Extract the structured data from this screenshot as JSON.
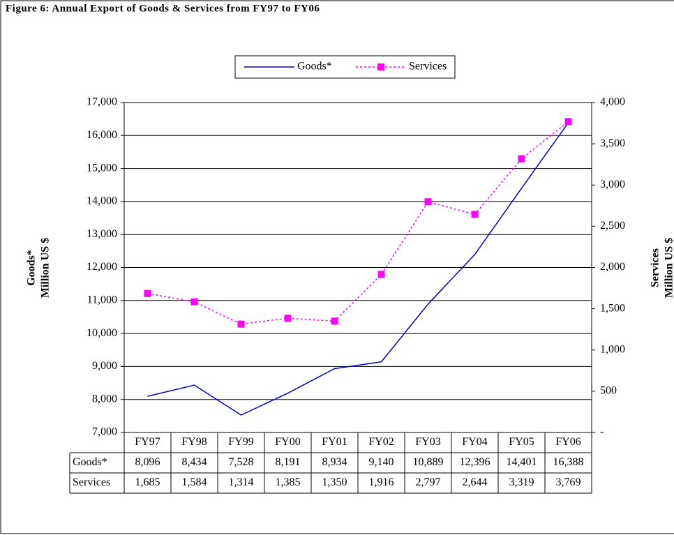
{
  "chart_data": {
    "type": "line",
    "title": "Figure 6: Annual  Export of Goods & Services from FY97 to FY06",
    "categories": [
      "FY97",
      "FY98",
      "FY99",
      "FY00",
      "FY01",
      "FY02",
      "FY03",
      "FY04",
      "FY05",
      "FY06"
    ],
    "y_label": [
      "Goods*",
      "Million US $"
    ],
    "y2_label": [
      "Services",
      "Million US $"
    ],
    "series": [
      {
        "name": "Goods*",
        "color": "#0000cc",
        "values": [
          8096,
          8434,
          7528,
          8191,
          8934,
          9140,
          10889,
          12396,
          14401,
          16388
        ],
        "value_labels": [
          "8,096",
          "8,434",
          "7,528",
          "8,191",
          "8,934",
          "9,140",
          "10,889",
          "12,396",
          "14,401",
          "16,388"
        ]
      },
      {
        "name": "Services",
        "color": "#ff00ff",
        "axis": "y2",
        "values": [
          1685,
          1584,
          1314,
          1385,
          1350,
          1916,
          2797,
          2644,
          3319,
          3769
        ],
        "value_labels": [
          "1,685",
          "1,584",
          "1,314",
          "1,385",
          "1,350",
          "1,916",
          "2,797",
          "2,644",
          "3,319",
          "3,769"
        ]
      }
    ],
    "ylim": [
      7000,
      17000
    ],
    "yticks": [
      {
        "value": 7000,
        "label": "7,000"
      },
      {
        "value": 8000,
        "label": "8,000"
      },
      {
        "value": 9000,
        "label": "9,000"
      },
      {
        "value": 10000,
        "label": "10,000"
      },
      {
        "value": 11000,
        "label": "11,000"
      },
      {
        "value": 12000,
        "label": "12,000"
      },
      {
        "value": 13000,
        "label": "13,000"
      },
      {
        "value": 14000,
        "label": "14,000"
      },
      {
        "value": 15000,
        "label": "15,000"
      },
      {
        "value": 16000,
        "label": "16,000"
      },
      {
        "value": 17000,
        "label": "17,000"
      }
    ],
    "y2lim": [
      0,
      4000
    ],
    "y2ticks": [
      {
        "value": 0,
        "label": "-"
      },
      500,
      {
        "value": 1000,
        "label": "1,000"
      },
      {
        "value": 1500,
        "label": "1,500"
      },
      {
        "value": 2000,
        "label": "2,000"
      },
      {
        "value": 2500,
        "label": "2,500"
      },
      {
        "value": 3000,
        "label": "3,000"
      },
      {
        "value": 3500,
        "label": "3,500"
      },
      {
        "value": 4000,
        "label": "4,000"
      }
    ],
    "grid": true,
    "legend": "top"
  }
}
